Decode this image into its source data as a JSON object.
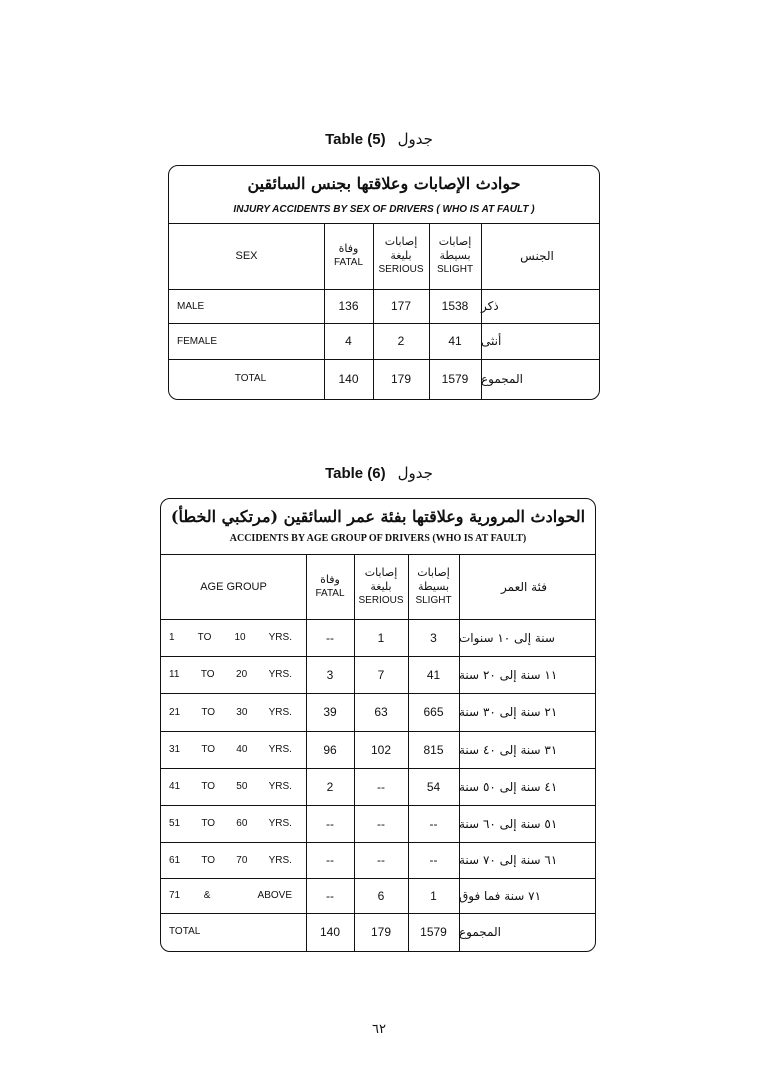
{
  "table5": {
    "caption_en": "Table (5)",
    "caption_ar": "جدول",
    "title_ar": "حوادث الإصابات وعلاقتها بجنس السائقين",
    "title_en": "INJURY ACCIDENTS BY SEX OF DRIVERS ( WHO IS AT FAULT )",
    "headers": {
      "sex": "SEX",
      "fatal_ar": "وفاة",
      "fatal": "FATAL",
      "serious_ar": "إصابات بليغة",
      "serious": "SERIOUS",
      "slight_ar": "إصابات بسيطة",
      "slight": "SLIGHT",
      "sex_ar": "الجنس"
    },
    "rows": [
      {
        "label": "MALE",
        "fatal": "136",
        "serious": "177",
        "slight": "1538",
        "label_ar": "ذكر"
      },
      {
        "label": "FEMALE",
        "fatal": "4",
        "serious": "2",
        "slight": "41",
        "label_ar": "أنثى"
      },
      {
        "label": "TOTAL",
        "fatal": "140",
        "serious": "179",
        "slight": "1579",
        "label_ar": "المجموع"
      }
    ]
  },
  "table6": {
    "caption_en": "Table (6)",
    "caption_ar": "جدول",
    "title_ar": "الحوادث المرورية وعلاقتها بفئة عمر السائقين (مرتكبي الخطأ)",
    "title_en": "ACCIDENTS BY AGE GROUP OF DRIVERS (WHO IS AT FAULT)",
    "headers": {
      "age": "AGE GROUP",
      "fatal_ar": "وفاة",
      "fatal": "FATAL",
      "serious_ar": "إصابات بليغة",
      "serious": "SERIOUS",
      "slight_ar": "إصابات بسيطة",
      "slight": "SLIGHT",
      "age_ar": "فئة العمر"
    },
    "rows": [
      {
        "from": "1",
        "to_word": "TO",
        "to": "10",
        "unit": "YRS.",
        "fatal": "--",
        "serious": "1",
        "slight": "3",
        "label_ar": "سنة إلى ١٠ سنوات"
      },
      {
        "from": "11",
        "to_word": "TO",
        "to": "20",
        "unit": "YRS.",
        "fatal": "3",
        "serious": "7",
        "slight": "41",
        "label_ar": "١١ سنة إلى ٢٠ سنة"
      },
      {
        "from": "21",
        "to_word": "TO",
        "to": "30",
        "unit": "YRS.",
        "fatal": "39",
        "serious": "63",
        "slight": "665",
        "label_ar": "٢١ سنة إلى ٣٠ سنة"
      },
      {
        "from": "31",
        "to_word": "TO",
        "to": "40",
        "unit": "YRS.",
        "fatal": "96",
        "serious": "102",
        "slight": "815",
        "label_ar": "٣١ سنة إلى ٤٠ سنة"
      },
      {
        "from": "41",
        "to_word": "TO",
        "to": "50",
        "unit": "YRS.",
        "fatal": "2",
        "serious": "--",
        "slight": "54",
        "label_ar": "٤١ سنة إلى ٥٠ سنة"
      },
      {
        "from": "51",
        "to_word": "TO",
        "to": "60",
        "unit": "YRS.",
        "fatal": "--",
        "serious": "--",
        "slight": "--",
        "label_ar": "٥١ سنة إلى ٦٠ سنة"
      },
      {
        "from": "61",
        "to_word": "TO",
        "to": "70",
        "unit": "YRS.",
        "fatal": "--",
        "serious": "--",
        "slight": "--",
        "label_ar": "٦١ سنة إلى ٧٠ سنة"
      },
      {
        "from": "71",
        "to_word": "&",
        "to": "",
        "unit": "ABOVE",
        "fatal": "--",
        "serious": "6",
        "slight": "1",
        "label_ar": "٧١ سنة فما فوق"
      }
    ],
    "total": {
      "label": "TOTAL",
      "fatal": "140",
      "serious": "179",
      "slight": "1579",
      "label_ar": "المجموع"
    }
  },
  "page_number": "٦٢"
}
